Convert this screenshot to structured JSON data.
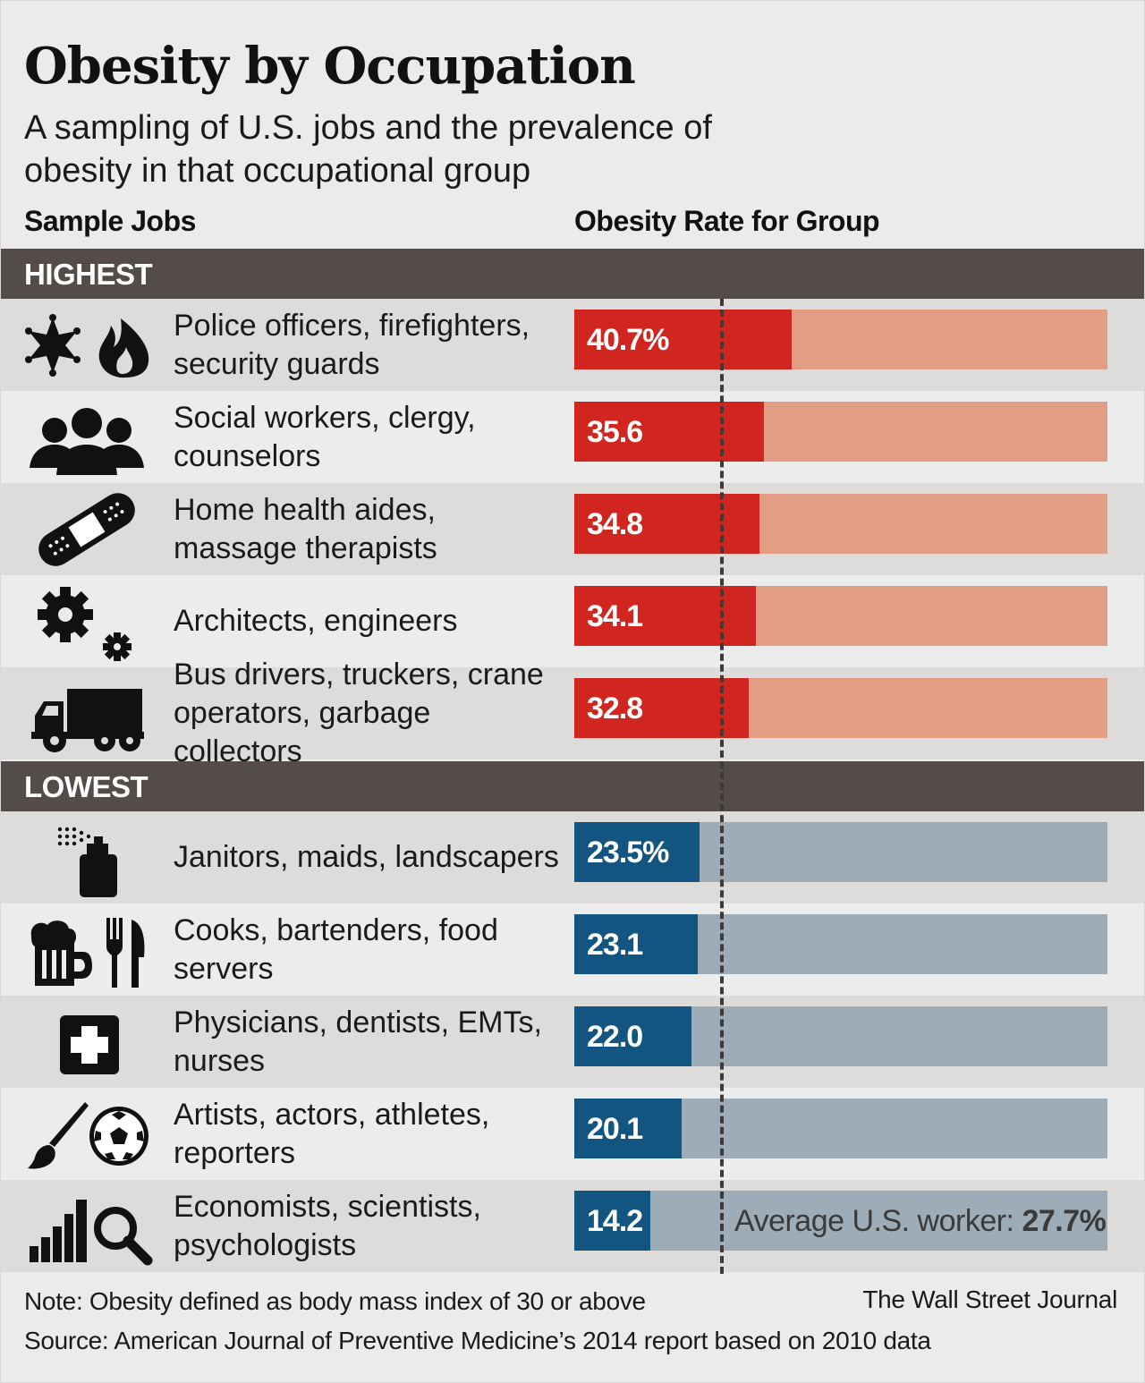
{
  "title": "Obesity by Occupation",
  "subtitle": "A sampling of U.S. jobs and the prevalence of obesity in that occupational group",
  "columns": {
    "jobs": "Sample Jobs",
    "rate": "Obesity Rate for Group"
  },
  "sections": {
    "highest": "HIGHEST",
    "lowest": "LOWEST"
  },
  "average_label": "Average U.S. worker:",
  "average_value": "27.7%",
  "note": "Note: Obesity defined as body mass index of 30 or above",
  "source": "Source: American Journal of Preventive Medicine’s 2014 report based on 2010 data",
  "credit": "The Wall Street Journal",
  "colors": {
    "high_bar": "#d1261f",
    "high_track": "#e29e85",
    "low_bar": "#125580",
    "low_track": "#9eacb8"
  },
  "chart_data": {
    "type": "bar",
    "orientation": "horizontal",
    "xlim": [
      0,
      100
    ],
    "reference_line": {
      "value": 27.7,
      "label": "Average U.S. worker: 27.7%"
    },
    "groups": [
      {
        "name": "HIGHEST",
        "items": [
          {
            "job": "Police officers, firefighters, security guards",
            "value": 40.7,
            "label": "40.7%",
            "icons": [
              "sheriff-star-icon",
              "flame-icon"
            ]
          },
          {
            "job": "Social workers, clergy, counselors",
            "value": 35.6,
            "label": "35.6",
            "icons": [
              "people-group-icon"
            ]
          },
          {
            "job": "Home health aides, massage therapists",
            "value": 34.8,
            "label": "34.8",
            "icons": [
              "bandage-icon"
            ]
          },
          {
            "job": "Architects, engineers",
            "value": 34.1,
            "label": "34.1",
            "icons": [
              "gears-icon"
            ]
          },
          {
            "job": "Bus drivers, truckers, crane operators, garbage collectors",
            "value": 32.8,
            "label": "32.8",
            "icons": [
              "truck-icon"
            ]
          }
        ]
      },
      {
        "name": "LOWEST",
        "items": [
          {
            "job": "Janitors, maids, landscapers",
            "value": 23.5,
            "label": "23.5%",
            "icons": [
              "spray-bottle-icon"
            ]
          },
          {
            "job": "Cooks, bartenders, food servers",
            "value": 23.1,
            "label": "23.1",
            "icons": [
              "beer-mug-icon",
              "fork-knife-icon"
            ]
          },
          {
            "job": "Physicians, dentists, EMTs, nurses",
            "value": 22.0,
            "label": "22.0",
            "icons": [
              "medical-cross-icon"
            ]
          },
          {
            "job": "Artists, actors, athletes, reporters",
            "value": 20.1,
            "label": "20.1",
            "icons": [
              "paintbrush-icon",
              "soccer-ball-icon"
            ]
          },
          {
            "job": "Economists, scientists, psychologists",
            "value": 14.2,
            "label": "14.2",
            "icons": [
              "bar-chart-icon",
              "magnifier-icon"
            ]
          }
        ]
      }
    ]
  }
}
